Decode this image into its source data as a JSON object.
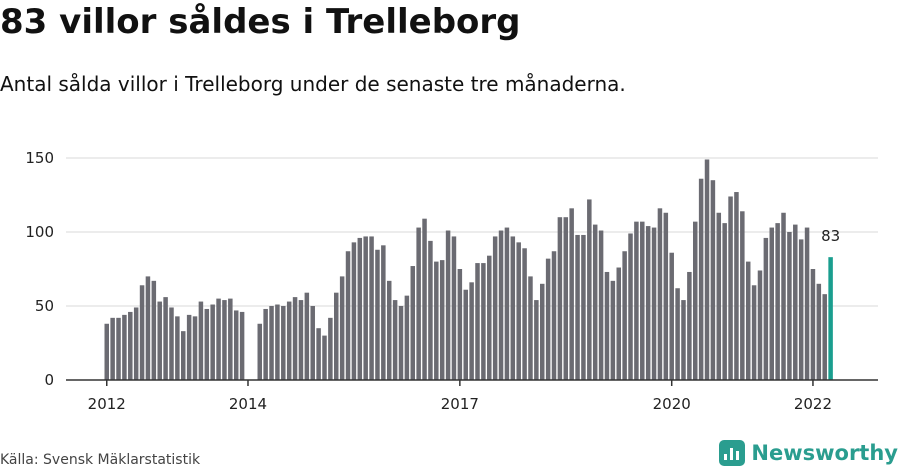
{
  "title": "83 villor såldes i Trelleborg",
  "subtitle": "Antal sålda villor i Trelleborg under de senaste tre månaderna.",
  "source": "Källa: Svensk Mäklarstatistik",
  "brand": {
    "name": "Newsworthy",
    "logo_icon": "newsworthy-logo-icon"
  },
  "colors": {
    "bar": "#6b6b72",
    "highlight": "#1a9e8f",
    "grid": "#d9d9d9",
    "axis": "#333333"
  },
  "chart_data": {
    "type": "bar",
    "x_start": "2012-01",
    "x_end": "2022-03",
    "x_tick_labels": [
      "2012",
      "2014",
      "2017",
      "2020",
      "2022"
    ],
    "y_tick_labels": [
      "0",
      "50",
      "100",
      "150"
    ],
    "ylim": [
      0,
      150
    ],
    "grid": true,
    "values": [
      38,
      42,
      42,
      44,
      46,
      49,
      64,
      70,
      67,
      53,
      56,
      49,
      43,
      33,
      44,
      43,
      53,
      48,
      51,
      55,
      54,
      55,
      47,
      46,
      0,
      0,
      38,
      48,
      50,
      51,
      50,
      53,
      56,
      54,
      59,
      50,
      35,
      30,
      42,
      59,
      70,
      87,
      93,
      96,
      97,
      97,
      88,
      91,
      67,
      54,
      50,
      57,
      77,
      103,
      109,
      94,
      80,
      81,
      101,
      97,
      75,
      61,
      66,
      79,
      79,
      84,
      97,
      101,
      103,
      97,
      93,
      89,
      70,
      54,
      65,
      82,
      87,
      110,
      110,
      116,
      98,
      98,
      122,
      105,
      101,
      73,
      67,
      76,
      87,
      99,
      107,
      107,
      104,
      103,
      116,
      113,
      86,
      62,
      54,
      73,
      107,
      136,
      149,
      135,
      113,
      106,
      124,
      127,
      114,
      80,
      64,
      74,
      96,
      103,
      106,
      113,
      100,
      105,
      95,
      103,
      75,
      65,
      58,
      83
    ],
    "highlight_label": "83"
  }
}
